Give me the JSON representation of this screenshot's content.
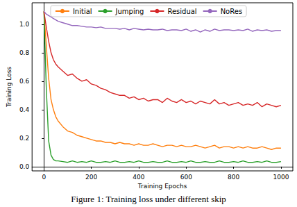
{
  "chart_data": {
    "type": "line",
    "title": "Figure 1: Training loss under different skip",
    "x_label": "Training Epochs",
    "y_label": "Training Loss",
    "xlim": [
      -50,
      1050
    ],
    "xticks": [
      0,
      200,
      400,
      600,
      800,
      1000
    ],
    "ylim": [
      -0.03,
      1.15
    ],
    "yticks": [
      {
        "value": 0,
        "label": "0.0"
      },
      0.2,
      0.4,
      0.6,
      0.8,
      {
        "value": 1,
        "label": "1.0"
      }
    ],
    "grid": false,
    "legend": "upper center",
    "x": [
      0,
      10,
      20,
      30,
      40,
      50,
      60,
      80,
      100,
      120,
      140,
      160,
      180,
      200,
      220,
      240,
      260,
      280,
      300,
      320,
      340,
      360,
      380,
      400,
      420,
      440,
      460,
      480,
      500,
      520,
      540,
      560,
      580,
      600,
      620,
      640,
      660,
      680,
      700,
      720,
      740,
      760,
      780,
      800,
      820,
      840,
      860,
      880,
      900,
      920,
      940,
      960,
      980,
      1000
    ],
    "series": [
      {
        "name": "Initial",
        "color": "#ff7f0e",
        "values": [
          1.09,
          0.85,
          0.62,
          0.47,
          0.4,
          0.35,
          0.32,
          0.28,
          0.25,
          0.24,
          0.22,
          0.21,
          0.2,
          0.19,
          0.18,
          0.18,
          0.17,
          0.17,
          0.16,
          0.17,
          0.16,
          0.16,
          0.15,
          0.16,
          0.15,
          0.15,
          0.16,
          0.15,
          0.14,
          0.15,
          0.15,
          0.14,
          0.15,
          0.14,
          0.14,
          0.15,
          0.14,
          0.13,
          0.14,
          0.15,
          0.13,
          0.14,
          0.14,
          0.13,
          0.14,
          0.13,
          0.14,
          0.13,
          0.13,
          0.14,
          0.13,
          0.12,
          0.13,
          0.13
        ]
      },
      {
        "name": "Jumping",
        "color": "#2ca02c",
        "values": [
          1.09,
          0.55,
          0.18,
          0.08,
          0.05,
          0.04,
          0.04,
          0.035,
          0.03,
          0.04,
          0.03,
          0.035,
          0.03,
          0.04,
          0.03,
          0.03,
          0.035,
          0.03,
          0.04,
          0.03,
          0.03,
          0.035,
          0.03,
          0.04,
          0.03,
          0.03,
          0.035,
          0.03,
          0.03,
          0.04,
          0.03,
          0.03,
          0.035,
          0.03,
          0.04,
          0.03,
          0.03,
          0.035,
          0.03,
          0.03,
          0.04,
          0.03,
          0.03,
          0.035,
          0.03,
          0.04,
          0.03,
          0.03,
          0.035,
          0.03,
          0.04,
          0.03,
          0.03,
          0.035
        ]
      },
      {
        "name": "Residual",
        "color": "#d62728",
        "values": [
          1.09,
          0.98,
          0.88,
          0.8,
          0.75,
          0.72,
          0.7,
          0.67,
          0.64,
          0.65,
          0.62,
          0.6,
          0.61,
          0.58,
          0.57,
          0.55,
          0.54,
          0.52,
          0.51,
          0.5,
          0.5,
          0.48,
          0.49,
          0.47,
          0.48,
          0.46,
          0.47,
          0.47,
          0.45,
          0.48,
          0.46,
          0.45,
          0.47,
          0.45,
          0.46,
          0.44,
          0.46,
          0.45,
          0.44,
          0.47,
          0.44,
          0.45,
          0.43,
          0.44,
          0.45,
          0.43,
          0.44,
          0.43,
          0.45,
          0.42,
          0.44,
          0.43,
          0.42,
          0.43
        ]
      },
      {
        "name": "NoRes",
        "color": "#9467bd",
        "values": [
          1.09,
          1.07,
          1.06,
          1.05,
          1.04,
          1.03,
          1.02,
          1.01,
          1.0,
          0.99,
          0.99,
          0.985,
          0.98,
          0.98,
          0.975,
          0.98,
          0.97,
          0.97,
          0.97,
          0.965,
          0.97,
          0.96,
          0.97,
          0.965,
          0.96,
          0.965,
          0.96,
          0.96,
          0.965,
          0.955,
          0.96,
          0.96,
          0.955,
          0.965,
          0.95,
          0.96,
          0.945,
          0.96,
          0.95,
          0.965,
          0.955,
          0.96,
          0.96,
          0.955,
          0.96,
          0.955,
          0.965,
          0.95,
          0.96,
          0.955,
          0.96,
          0.95,
          0.955,
          0.955
        ]
      }
    ]
  }
}
